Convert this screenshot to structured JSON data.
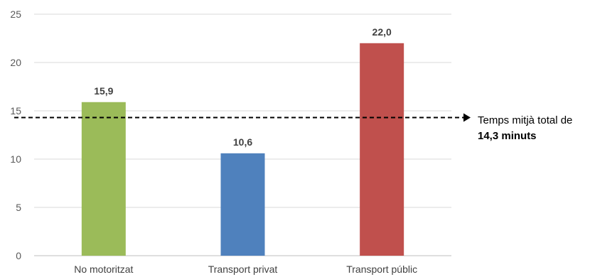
{
  "chart_data": {
    "type": "bar",
    "categories": [
      "No motoritzat",
      "Transport privat",
      "Transport públic"
    ],
    "values": [
      15.9,
      10.6,
      22.0
    ],
    "value_labels": [
      "15,9",
      "10,6",
      "22,0"
    ],
    "colors": [
      "#9bbb59",
      "#4f81bd",
      "#c0504d"
    ],
    "ylim": [
      0,
      25
    ],
    "yticks": [
      0,
      5,
      10,
      15,
      20,
      25
    ],
    "ytick_labels": [
      "0",
      "5",
      "10",
      "15",
      "20",
      "25"
    ],
    "grid": true,
    "reference_line": {
      "value": 14.3,
      "style": "dashed",
      "label_line1": "Temps mitjà total de",
      "label_line2": "14,3 minuts"
    }
  }
}
